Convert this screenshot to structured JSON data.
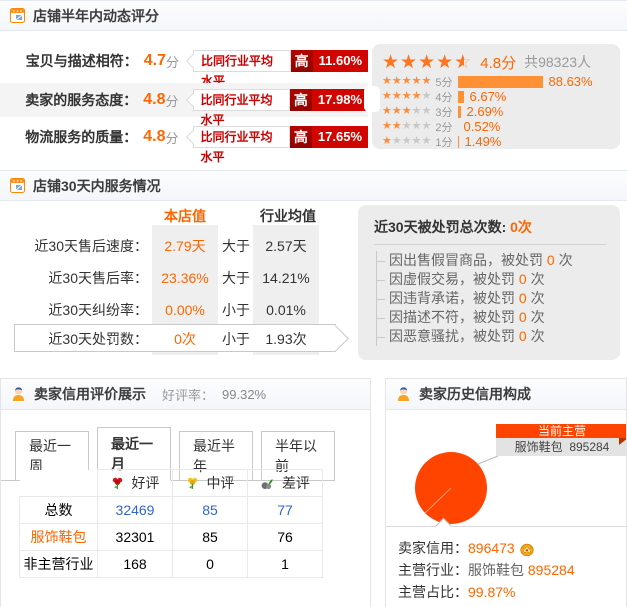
{
  "colors": {
    "accent": "#ff6600",
    "pie": "#ff4400",
    "badge_red": "#d10500",
    "link_blue": "#3366cc"
  },
  "section1": {
    "title": "店铺半年内动态评分",
    "rows": [
      {
        "label": "宝贝与描述相符：",
        "score": "4.7",
        "unit": "分",
        "compare": "比同行业平均水平",
        "word": "高",
        "pct": "11.60%"
      },
      {
        "label": "卖家的服务态度：",
        "score": "4.8",
        "unit": "分",
        "compare": "比同行业平均水平",
        "word": "高",
        "pct": "17.98%"
      },
      {
        "label": "物流服务的质量：",
        "score": "4.8",
        "unit": "分",
        "compare": "比同行业平均水平",
        "word": "高",
        "pct": "17.65%"
      }
    ],
    "summary": {
      "stars": 4.5,
      "rating": "4.8",
      "unit": "分",
      "count": "共98323人"
    },
    "distribution": [
      {
        "stars": 5,
        "label": "5分",
        "pct": "88.63%"
      },
      {
        "stars": 4,
        "label": "4分",
        "pct": "6.67%"
      },
      {
        "stars": 3,
        "label": "3分",
        "pct": "2.69%"
      },
      {
        "stars": 2,
        "label": "2分",
        "pct": "0.52%"
      },
      {
        "stars": 1,
        "label": "1分",
        "pct": "1.49%"
      }
    ]
  },
  "section2": {
    "title": "店铺30天内服务情况",
    "col_shop": "本店值",
    "col_industry": "行业均值",
    "rows": [
      {
        "label": "近30天售后速度：",
        "shop": "2.79天",
        "cmp": "大于",
        "industry": "2.57天"
      },
      {
        "label": "近30天售后率：",
        "shop": "23.36%",
        "cmp": "大于",
        "industry": "14.21%"
      },
      {
        "label": "近30天纠纷率：",
        "shop": "0.00%",
        "cmp": "小于",
        "industry": "0.01%"
      },
      {
        "label": "近30天处罚数：",
        "shop": "0次",
        "cmp": "小于",
        "industry": "1.93次"
      }
    ],
    "penalty": {
      "title": "近30天被处罚总次数:",
      "count": "0次",
      "items": [
        {
          "text": "因出售假冒商品，被处罚",
          "count": "0",
          "unit": "次"
        },
        {
          "text": "因虚假交易，被处罚",
          "count": "0",
          "unit": "次"
        },
        {
          "text": "因违背承诺，被处罚",
          "count": "0",
          "unit": "次"
        },
        {
          "text": "因描述不符，被处罚",
          "count": "0",
          "unit": "次"
        },
        {
          "text": "因恶意骚扰，被处罚",
          "count": "0",
          "unit": "次"
        }
      ]
    }
  },
  "section3": {
    "title": "卖家信用评价展示",
    "rate_label": "好评率：",
    "rate_value": "99.32%",
    "tabs": [
      {
        "label": "最近一周"
      },
      {
        "label": "最近一月"
      },
      {
        "label": "最近半年"
      },
      {
        "label": "半年以前"
      }
    ],
    "table": {
      "headers": [
        {
          "icon": "flower-red-icon",
          "label": "好评"
        },
        {
          "icon": "flower-yellow-icon",
          "label": "中评"
        },
        {
          "icon": "wilted-icon",
          "label": "差评"
        }
      ],
      "rows": [
        {
          "label": "总数",
          "values": [
            "32469",
            "85",
            "77"
          ]
        },
        {
          "label": "服饰鞋包",
          "values": [
            "32301",
            "85",
            "76"
          ]
        },
        {
          "label": "非主营行业",
          "values": [
            "168",
            "0",
            "1"
          ]
        }
      ]
    }
  },
  "section4": {
    "title": "卖家历史信用构成",
    "callout": {
      "title": "当前主营",
      "name": "服饰鞋包",
      "value": "895284"
    },
    "info": [
      {
        "label": "卖家信用：",
        "value": "896473"
      },
      {
        "label": "主营行业：",
        "name": "服饰鞋包",
        "value": "895284"
      },
      {
        "label": "主营占比：",
        "value": "99.87%"
      }
    ],
    "pie": {
      "main_pct": 99.87
    }
  }
}
